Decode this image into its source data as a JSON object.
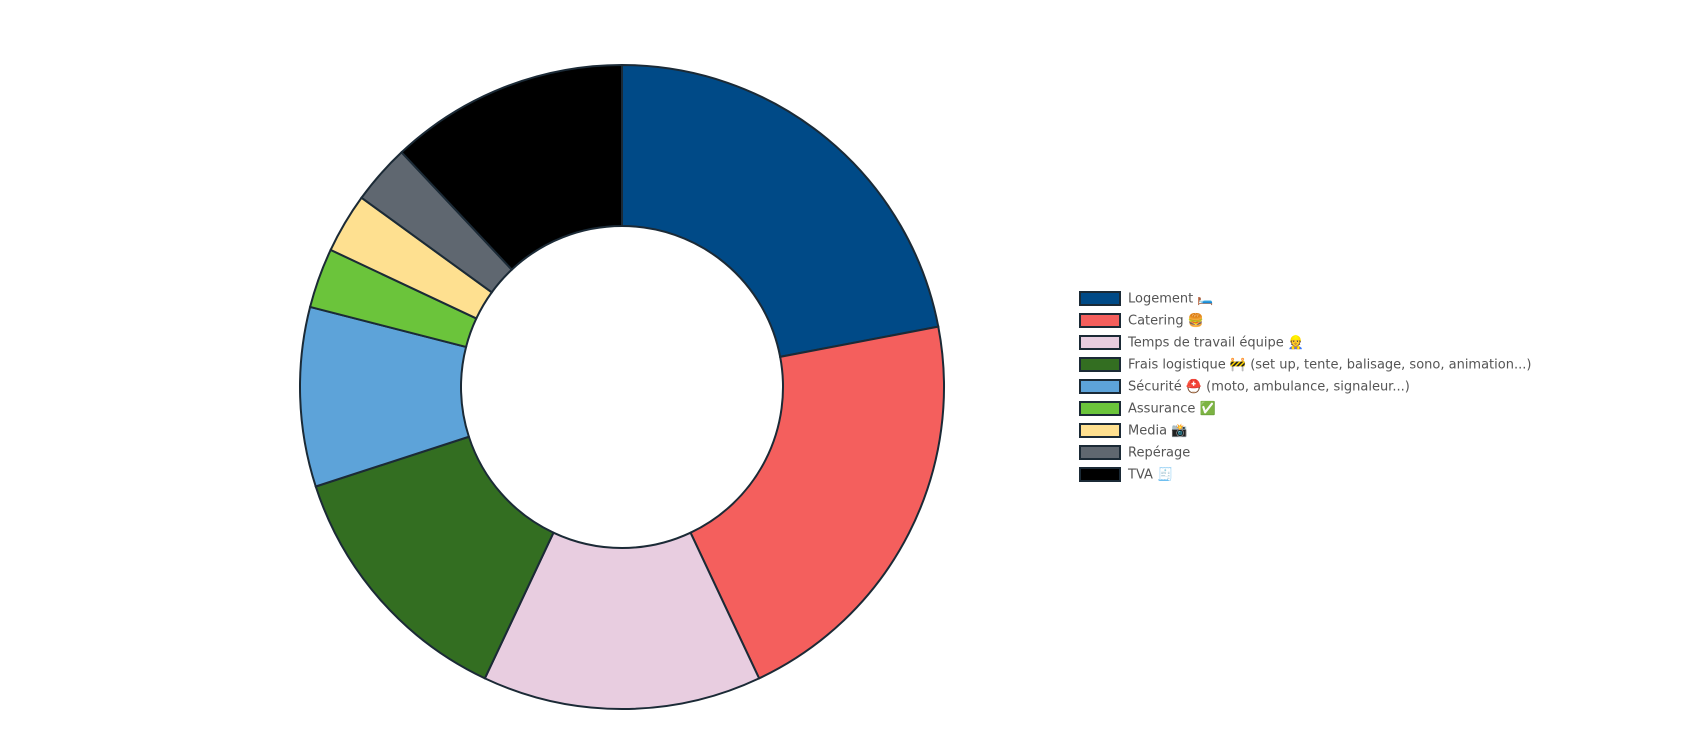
{
  "chart_data": {
    "type": "doughnut",
    "categories": [
      "Logement 🛏️",
      "Catering 🍔",
      "Temps de travail équipe 👷",
      "Frais logistique 🚧 (set up, tente, balisage, sono, animation...)",
      "Sécurité ⛑️ (moto, ambulance, signaleur...)",
      "Assurance ✅",
      "Media 📸",
      "Repérage",
      "TVA 🧾"
    ],
    "values": [
      22,
      21,
      14,
      13,
      9,
      3,
      3,
      3,
      12
    ],
    "colors": [
      "#004a87",
      "#f45f5d",
      "#e8cde0",
      "#336e21",
      "#5da3d9",
      "#6bc43b",
      "#fee090",
      "#5f6770",
      "#000000"
    ],
    "border_color": "#1b2a36",
    "legend": "right"
  }
}
